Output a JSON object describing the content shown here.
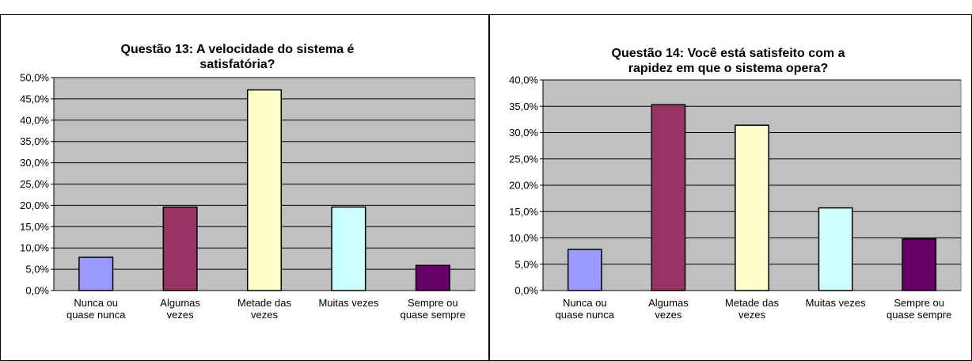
{
  "chart_data": [
    {
      "type": "bar",
      "title": "Questão 13: A velocidade do sistema é satisfatória?",
      "categories": [
        "Nunca ou quase nunca",
        "Algumas vezes",
        "Metade das vezes",
        "Muitas vezes",
        "Sempre ou quase sempre"
      ],
      "values": [
        7.8,
        19.6,
        47.1,
        19.6,
        5.9
      ],
      "colors": [
        "#9999ff",
        "#993366",
        "#ffffcc",
        "#ccffff",
        "#660066"
      ],
      "ylim": [
        0,
        50
      ],
      "yticks": [
        {
          "value": 0,
          "label": "0,0%"
        },
        {
          "value": 5,
          "label": "5,0%"
        },
        {
          "value": 10,
          "label": "10,0%"
        },
        {
          "value": 15,
          "label": "15,0%"
        },
        {
          "value": 20,
          "label": "20,0%"
        },
        {
          "value": 25,
          "label": "25,0%"
        },
        {
          "value": 30,
          "label": "30,0%"
        },
        {
          "value": 35,
          "label": "35,0%"
        },
        {
          "value": 40,
          "label": "40,0%"
        },
        {
          "value": 45,
          "label": "45,0%"
        },
        {
          "value": 50,
          "label": "50,0%"
        }
      ],
      "grid": true
    },
    {
      "type": "bar",
      "title": "Questão 14: Você está satisfeito com a rapidez em que o sistema opera?",
      "categories": [
        "Nunca ou quase nunca",
        "Algumas vezes",
        "Metade das vezes",
        "Muitas vezes",
        "Sempre ou quase sempre"
      ],
      "values": [
        7.8,
        35.3,
        31.4,
        15.7,
        9.8
      ],
      "colors": [
        "#9999ff",
        "#993366",
        "#ffffcc",
        "#ccffff",
        "#660066"
      ],
      "ylim": [
        0,
        40
      ],
      "yticks": [
        {
          "value": 0,
          "label": "0,0%"
        },
        {
          "value": 5,
          "label": "5,0%"
        },
        {
          "value": 10,
          "label": "10,0%"
        },
        {
          "value": 15,
          "label": "15,0%"
        },
        {
          "value": 20,
          "label": "20,0%"
        },
        {
          "value": 25,
          "label": "25,0%"
        },
        {
          "value": 30,
          "label": "30,0%"
        },
        {
          "value": 35,
          "label": "35,0%"
        },
        {
          "value": 40,
          "label": "40,0%"
        }
      ],
      "grid": true
    }
  ]
}
